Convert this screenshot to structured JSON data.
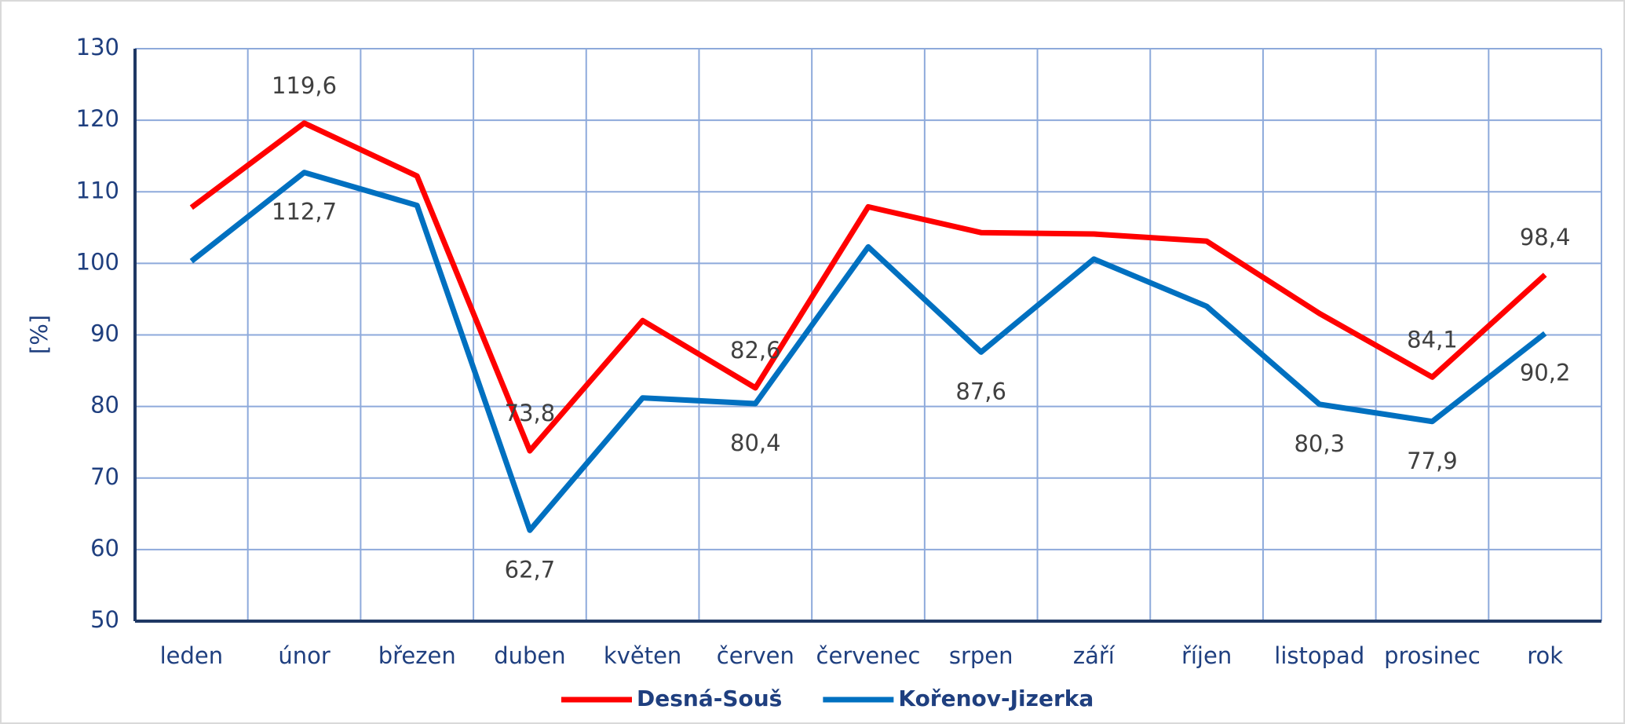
{
  "chart_data": {
    "type": "line",
    "y_label": "[%]",
    "categories": [
      "leden",
      "únor",
      "březen",
      "duben",
      "květen",
      "červen",
      "červenec",
      "srpen",
      "září",
      "říjen",
      "listopad",
      "prosinec",
      "rok"
    ],
    "series": [
      {
        "name": "Desná-Souš",
        "color": "#ff0000",
        "values": [
          107.8,
          119.6,
          112.2,
          73.8,
          92.0,
          82.6,
          107.9,
          104.3,
          104.1,
          103.1,
          93.0,
          84.1,
          98.4
        ],
        "value_labels": [
          null,
          "119,6",
          null,
          "73,8",
          null,
          "82,6",
          null,
          null,
          null,
          null,
          null,
          "84,1",
          "98,4"
        ]
      },
      {
        "name": "Kořenov-Jizerka",
        "color": "#0070c0",
        "values": [
          100.3,
          112.7,
          108.1,
          62.7,
          81.2,
          80.4,
          102.3,
          87.6,
          100.6,
          94.0,
          80.3,
          77.9,
          90.2
        ],
        "value_labels": [
          null,
          "112,7",
          null,
          "62,7",
          null,
          "80,4",
          null,
          "87,6",
          null,
          null,
          "80,3",
          "77,9",
          "90,2"
        ]
      }
    ],
    "ylim": [
      50,
      130
    ],
    "yticks": [
      50,
      60,
      70,
      80,
      90,
      100,
      110,
      120,
      130
    ],
    "grid": true,
    "legend": "bottom"
  }
}
